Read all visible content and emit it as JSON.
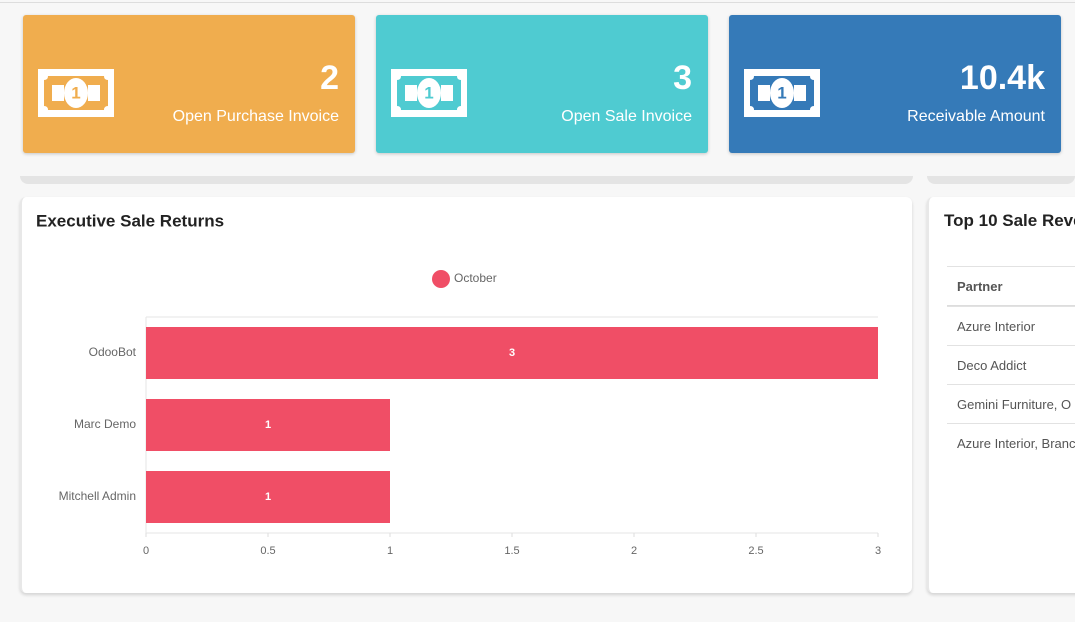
{
  "cards": [
    {
      "value": "2",
      "label": "Open Purchase Invoice",
      "color": "#f0ad4e"
    },
    {
      "value": "3",
      "label": "Open Sale Invoice",
      "color": "#4fcbd1"
    },
    {
      "value": "10.4k",
      "label": "Receivable Amount",
      "color": "#357ab8"
    }
  ],
  "chart_data": {
    "type": "bar",
    "orientation": "horizontal",
    "title": "Executive Sale Returns",
    "categories": [
      "OdooBot",
      "Marc Demo",
      "Mitchell Admin"
    ],
    "series": [
      {
        "name": "October",
        "color": "#f04e66",
        "values": [
          3,
          1,
          1
        ]
      }
    ],
    "xlim": [
      0,
      3
    ],
    "xticks": [
      0,
      0.5,
      1,
      1.5,
      2,
      2.5,
      3
    ],
    "legend": "top"
  },
  "table": {
    "title": "Top 10 Sale Reve",
    "header": [
      "Partner"
    ],
    "rows": [
      [
        "Azure Interior"
      ],
      [
        "Deco Addict"
      ],
      [
        "Gemini Furniture, O"
      ],
      [
        "Azure Interior, Branc"
      ]
    ]
  }
}
